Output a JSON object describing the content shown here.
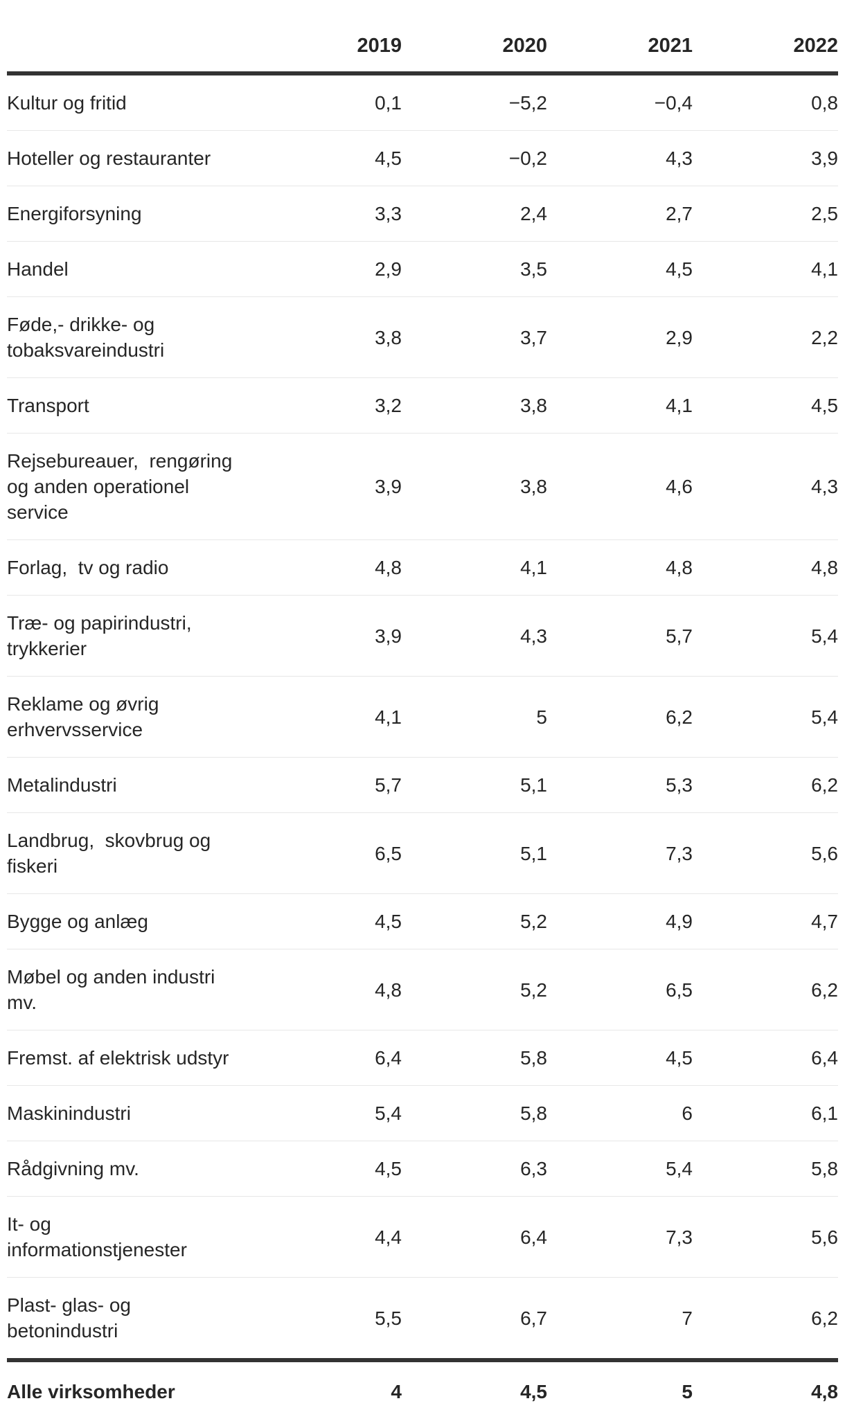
{
  "chart_data": {
    "type": "table",
    "columns": [
      "2019",
      "2020",
      "2021",
      "2022"
    ],
    "rows": [
      {
        "label": "Kultur og fritid",
        "display": "Kultur og fritid",
        "values": [
          "0,1",
          "−5,2",
          "−0,4",
          "0,8"
        ],
        "numeric": [
          0.1,
          -5.2,
          -0.4,
          0.8
        ]
      },
      {
        "label": "Hoteller og restauranter",
        "display": "Hoteller og restauranter",
        "values": [
          "4,5",
          "−0,2",
          "4,3",
          "3,9"
        ],
        "numeric": [
          4.5,
          -0.2,
          4.3,
          3.9
        ]
      },
      {
        "label": "Energiforsyning",
        "display": "Energiforsyning",
        "values": [
          "3,3",
          "2,4",
          "2,7",
          "2,5"
        ],
        "numeric": [
          3.3,
          2.4,
          2.7,
          2.5
        ]
      },
      {
        "label": "Handel",
        "display": "Handel",
        "values": [
          "2,9",
          "3,5",
          "4,5",
          "4,1"
        ],
        "numeric": [
          2.9,
          3.5,
          4.5,
          4.1
        ]
      },
      {
        "label": "Føde,- drikke- og tobaksvareindustri",
        "display": "Føde,- drikke- og\ntobaksvareindustri",
        "values": [
          "3,8",
          "3,7",
          "2,9",
          "2,2"
        ],
        "numeric": [
          3.8,
          3.7,
          2.9,
          2.2
        ]
      },
      {
        "label": "Transport",
        "display": "Transport",
        "values": [
          "3,2",
          "3,8",
          "4,1",
          "4,5"
        ],
        "numeric": [
          3.2,
          3.8,
          4.1,
          4.5
        ]
      },
      {
        "label": "Rejsebureauer, rengøring og anden operationel service",
        "display": "Rejsebureauer,  rengøring\nog anden operationel\nservice",
        "values": [
          "3,9",
          "3,8",
          "4,6",
          "4,3"
        ],
        "numeric": [
          3.9,
          3.8,
          4.6,
          4.3
        ]
      },
      {
        "label": "Forlag, tv og radio",
        "display": "Forlag,  tv og radio",
        "values": [
          "4,8",
          "4,1",
          "4,8",
          "4,8"
        ],
        "numeric": [
          4.8,
          4.1,
          4.8,
          4.8
        ]
      },
      {
        "label": "Træ- og papirindustri, trykkerier",
        "display": "Træ- og papirindustri,\ntrykkerier",
        "values": [
          "3,9",
          "4,3",
          "5,7",
          "5,4"
        ],
        "numeric": [
          3.9,
          4.3,
          5.7,
          5.4
        ]
      },
      {
        "label": "Reklame og øvrig erhvervsservice",
        "display": "Reklame og øvrig\nerhvervsservice",
        "values": [
          "4,1",
          "5",
          "6,2",
          "5,4"
        ],
        "numeric": [
          4.1,
          5,
          6.2,
          5.4
        ]
      },
      {
        "label": "Metalindustri",
        "display": "Metalindustri",
        "values": [
          "5,7",
          "5,1",
          "5,3",
          "6,2"
        ],
        "numeric": [
          5.7,
          5.1,
          5.3,
          6.2
        ]
      },
      {
        "label": "Landbrug, skovbrug og fiskeri",
        "display": "Landbrug,  skovbrug og\nfiskeri",
        "values": [
          "6,5",
          "5,1",
          "7,3",
          "5,6"
        ],
        "numeric": [
          6.5,
          5.1,
          7.3,
          5.6
        ]
      },
      {
        "label": "Bygge og anlæg",
        "display": "Bygge og anlæg",
        "values": [
          "4,5",
          "5,2",
          "4,9",
          "4,7"
        ],
        "numeric": [
          4.5,
          5.2,
          4.9,
          4.7
        ]
      },
      {
        "label": "Møbel og anden industri mv.",
        "display": "Møbel og anden industri\nmv.",
        "values": [
          "4,8",
          "5,2",
          "6,5",
          "6,2"
        ],
        "numeric": [
          4.8,
          5.2,
          6.5,
          6.2
        ]
      },
      {
        "label": "Fremst. af elektrisk udstyr",
        "display": "Fremst. af elektrisk udstyr",
        "values": [
          "6,4",
          "5,8",
          "4,5",
          "6,4"
        ],
        "numeric": [
          6.4,
          5.8,
          4.5,
          6.4
        ]
      },
      {
        "label": "Maskinindustri",
        "display": "Maskinindustri",
        "values": [
          "5,4",
          "5,8",
          "6",
          "6,1"
        ],
        "numeric": [
          5.4,
          5.8,
          6,
          6.1
        ]
      },
      {
        "label": "Rådgivning mv.",
        "display": "Rådgivning mv.",
        "values": [
          "4,5",
          "6,3",
          "5,4",
          "5,8"
        ],
        "numeric": [
          4.5,
          6.3,
          5.4,
          5.8
        ]
      },
      {
        "label": "It- og informationstjenester",
        "display": "It- og\ninformationstjenester",
        "values": [
          "4,4",
          "6,4",
          "7,3",
          "5,6"
        ],
        "numeric": [
          4.4,
          6.4,
          7.3,
          5.6
        ]
      },
      {
        "label": "Plast- glas- og betonindustri",
        "display": "Plast- glas- og\nbetonindustri",
        "values": [
          "5,5",
          "6,7",
          "7",
          "6,2"
        ],
        "numeric": [
          5.5,
          6.7,
          7,
          6.2
        ]
      }
    ],
    "footer": {
      "label": "Alle virksomheder",
      "values": [
        "4",
        "4,5",
        "5",
        "4,8"
      ],
      "numeric": [
        4,
        4.5,
        5,
        4.8
      ]
    },
    "layout": {
      "header_rule_color": "#333333",
      "row_separator_color": "#e7e7e7",
      "text_color": "#262626",
      "background": "#ffffff",
      "decimal_separator": ",",
      "negative_sign": "−"
    }
  }
}
